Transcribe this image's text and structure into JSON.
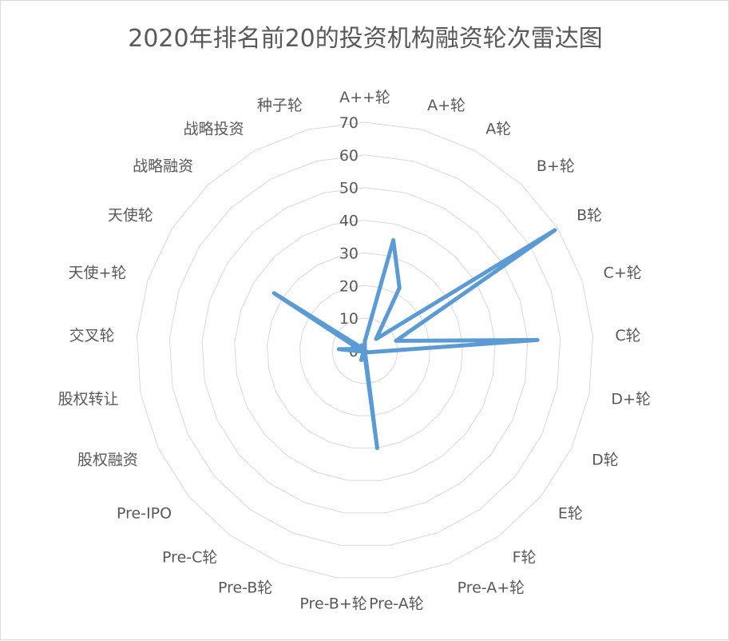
{
  "chart_data": {
    "type": "radar",
    "title": "2020年排名前20的投资机构融资轮次雷达图",
    "categories": [
      "A++轮",
      "A+轮",
      "A轮",
      "B+轮",
      "B轮",
      "C+轮",
      "C轮",
      "D+轮",
      "D轮",
      "E轮",
      "F轮",
      "Pre-A+轮",
      "Pre-A轮",
      "Pre-B+轮",
      "Pre-B轮",
      "Pre-C轮",
      "Pre-IPO",
      "股权融资",
      "股权转让",
      "交叉轮",
      "天使+轮",
      "天使轮",
      "战略融资",
      "战略投资",
      "种子轮"
    ],
    "series": [
      {
        "values": [
          3,
          35,
          22,
          5,
          69,
          10,
          53,
          2,
          1,
          0,
          0,
          0,
          30,
          1,
          3,
          1,
          0,
          0,
          1,
          8,
          2,
          33,
          1,
          2,
          0
        ],
        "color": "#5b9bd5"
      }
    ],
    "rlim": [
      0,
      70
    ],
    "ticks": [
      "0",
      "10",
      "20",
      "30",
      "40",
      "50",
      "60",
      "70"
    ],
    "grid": true
  }
}
